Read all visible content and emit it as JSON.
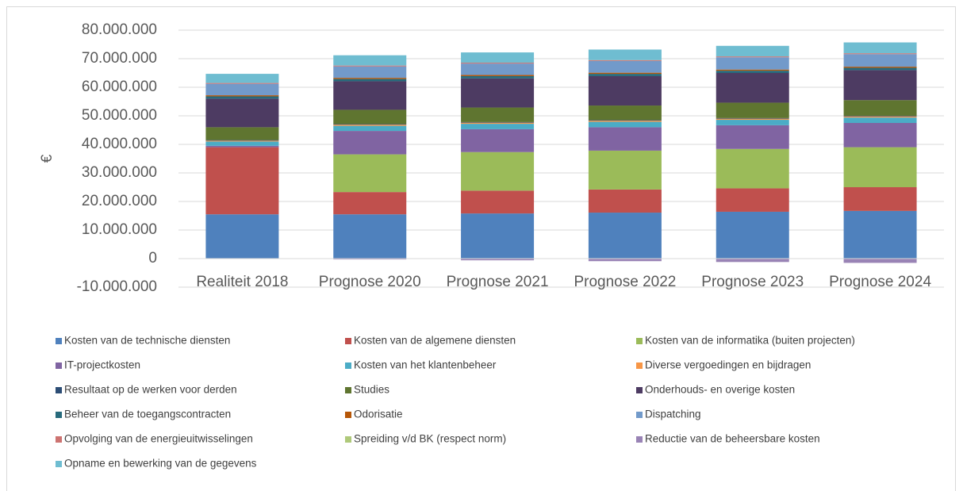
{
  "chart_data": {
    "type": "stacked_bar",
    "y_label": "€",
    "categories": [
      "Realiteit 2018",
      "Prognose 2020",
      "Prognose 2021",
      "Prognose 2022",
      "Prognose 2023",
      "Prognose 2024"
    ],
    "ylim": [
      -10000000,
      80000000
    ],
    "yticks": [
      {
        "value": -10000000,
        "label": "-10.000.000"
      },
      0,
      {
        "value": 10000000,
        "label": "10.000.000"
      },
      {
        "value": 20000000,
        "label": "20.000.000"
      },
      {
        "value": 30000000,
        "label": "30.000.000"
      },
      {
        "value": 40000000,
        "label": "40.000.000"
      },
      {
        "value": 50000000,
        "label": "50.000.000"
      },
      {
        "value": 60000000,
        "label": "60.000.000"
      },
      {
        "value": 70000000,
        "label": "70.000.000"
      },
      {
        "value": 80000000,
        "label": "80.000.000"
      }
    ],
    "grid": true,
    "legend": "bottom",
    "series": [
      {
        "name": "Kosten van de technische diensten",
        "color": "#4f81bd",
        "values": [
          15500000,
          15500000,
          15800000,
          16100000,
          16400000,
          16700000
        ]
      },
      {
        "name": "Kosten van de algemene diensten",
        "color": "#c0504d",
        "values": [
          23500000,
          7800000,
          8000000,
          8100000,
          8200000,
          8300000
        ]
      },
      {
        "name": "Kosten van de informatika (buiten projecten)",
        "color": "#9bbb59",
        "values": [
          0,
          13200000,
          13500000,
          13600000,
          13800000,
          14000000
        ]
      },
      {
        "name": "IT-projectkosten",
        "color": "#8064a2",
        "values": [
          500000,
          8200000,
          8000000,
          8200000,
          8300000,
          8500000
        ]
      },
      {
        "name": "Kosten van het klantenbeheer",
        "color": "#4bacc6",
        "values": [
          1500000,
          1800000,
          1900000,
          1900000,
          1900000,
          1900000
        ]
      },
      {
        "name": "Diverse vergoedingen en bijdragen",
        "color": "#f79646",
        "values": [
          300000,
          400000,
          400000,
          400000,
          400000,
          400000
        ]
      },
      {
        "name": "Resultaat op de werken voor derden",
        "color": "#2c4d75",
        "values": [
          200000,
          200000,
          200000,
          200000,
          200000,
          200000
        ]
      },
      {
        "name": "Studies",
        "color": "#5f7530",
        "values": [
          4500000,
          5000000,
          5100000,
          5100000,
          5400000,
          5500000
        ]
      },
      {
        "name": "Onderhouds- en overige kosten",
        "color": "#4d3b62",
        "values": [
          10000000,
          10000000,
          10200000,
          10300000,
          10400000,
          10500000
        ]
      },
      {
        "name": "Beheer van de toegangscontracten",
        "color": "#276a7c",
        "values": [
          800000,
          800000,
          800000,
          800000,
          800000,
          800000
        ]
      },
      {
        "name": "Odorisatie",
        "color": "#b65708",
        "values": [
          400000,
          400000,
          400000,
          400000,
          400000,
          400000
        ]
      },
      {
        "name": "Dispatching",
        "color": "#729aca",
        "values": [
          4000000,
          4000000,
          4000000,
          4100000,
          4300000,
          4400000
        ]
      },
      {
        "name": "Opvolging van de energieuitwisselingen",
        "color": "#cd7371",
        "values": [
          300000,
          300000,
          300000,
          300000,
          300000,
          300000
        ]
      },
      {
        "name": "Spreiding v/d BK (respect norm)",
        "color": "#afc97a",
        "values": [
          0,
          0,
          0,
          0,
          0,
          0
        ]
      },
      {
        "name": "Reductie van de beheersbare kosten",
        "color": "#9983b5",
        "values": [
          0,
          -300000,
          -600000,
          -900000,
          -1200000,
          -1500000
        ]
      },
      {
        "name": "Opname en bewerking van de gegevens",
        "color": "#6fbdd1",
        "values": [
          3200000,
          3600000,
          3600000,
          3700000,
          3700000,
          3800000
        ]
      }
    ]
  }
}
